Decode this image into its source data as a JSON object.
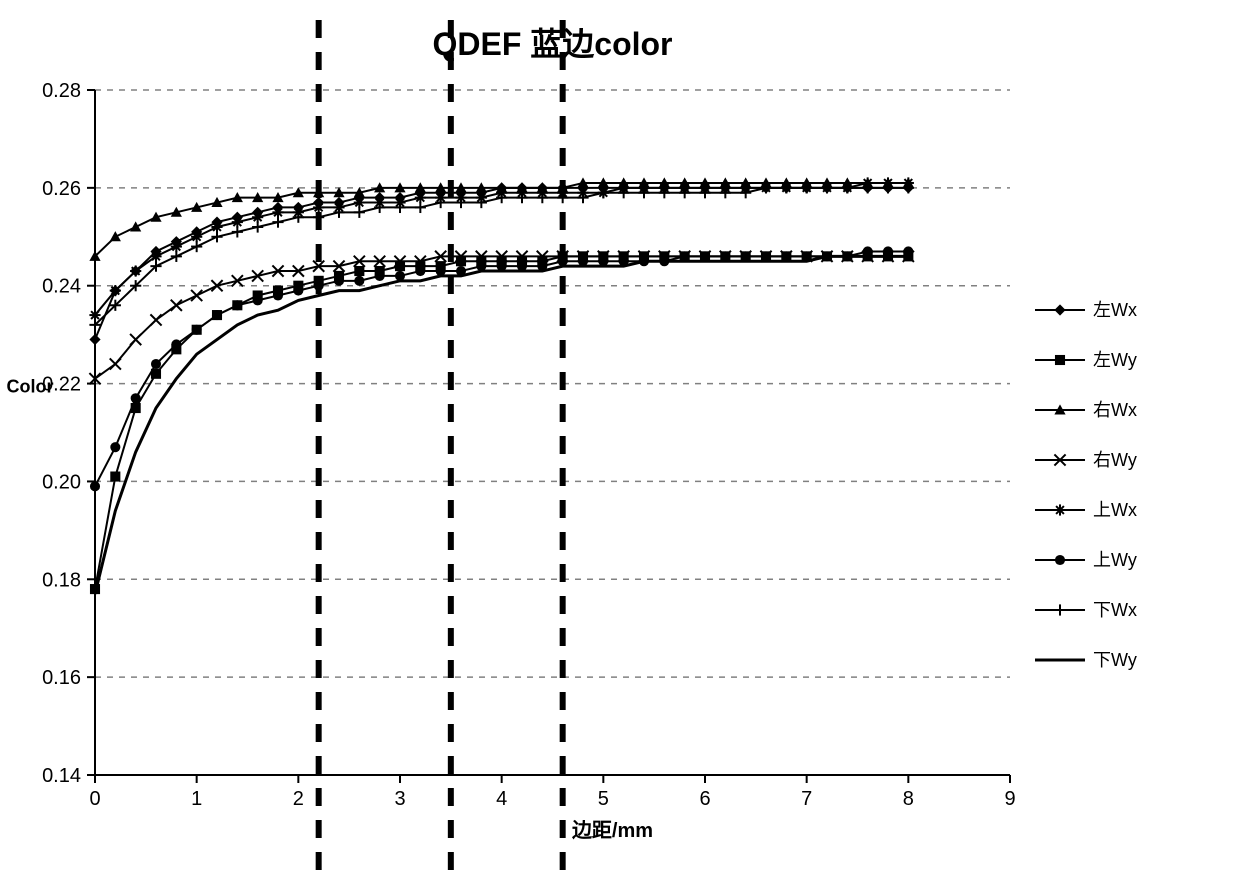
{
  "chart": {
    "type": "line",
    "title": "QDEF 蓝边color",
    "title_fontsize": 32,
    "title_fontweight": "bold",
    "xlabel": "边距/mm",
    "ylabel": "Color",
    "label_fontsize": 20,
    "label_fontweight": "bold",
    "tick_fontsize": 20,
    "xlim": [
      0,
      9
    ],
    "ylim": [
      0.14,
      0.28
    ],
    "xtick_step": 1,
    "ytick_step": 0.02,
    "background_color": "#ffffff",
    "grid_color": "#808080",
    "grid_dash": "6,6",
    "axis_color": "#000000",
    "vlines": [
      2.2,
      3.5,
      4.6
    ],
    "vline_dash": "18,14",
    "vline_width": 6,
    "legend_fontsize": 18,
    "series": [
      {
        "name": "左Wx",
        "marker": "diamond",
        "line_width": 2,
        "marker_size": 8,
        "color": "#000000",
        "x": [
          0,
          0.2,
          0.4,
          0.6,
          0.8,
          1,
          1.2,
          1.4,
          1.6,
          1.8,
          2,
          2.2,
          2.4,
          2.6,
          2.8,
          3,
          3.2,
          3.4,
          3.6,
          3.8,
          4,
          4.2,
          4.4,
          4.6,
          4.8,
          5,
          5.2,
          5.4,
          5.6,
          5.8,
          6,
          6.2,
          6.4,
          6.6,
          6.8,
          7,
          7.2,
          7.4,
          7.6,
          7.8,
          8
        ],
        "y": [
          0.229,
          0.239,
          0.243,
          0.247,
          0.249,
          0.251,
          0.253,
          0.254,
          0.255,
          0.256,
          0.256,
          0.257,
          0.257,
          0.258,
          0.258,
          0.258,
          0.259,
          0.259,
          0.259,
          0.259,
          0.26,
          0.26,
          0.26,
          0.26,
          0.26,
          0.26,
          0.26,
          0.26,
          0.26,
          0.26,
          0.26,
          0.26,
          0.26,
          0.26,
          0.26,
          0.26,
          0.26,
          0.26,
          0.26,
          0.26,
          0.26
        ]
      },
      {
        "name": "左Wy",
        "marker": "square",
        "line_width": 2,
        "marker_size": 8,
        "color": "#000000",
        "x": [
          0,
          0.2,
          0.4,
          0.6,
          0.8,
          1,
          1.2,
          1.4,
          1.6,
          1.8,
          2,
          2.2,
          2.4,
          2.6,
          2.8,
          3,
          3.2,
          3.4,
          3.6,
          3.8,
          4,
          4.2,
          4.4,
          4.6,
          4.8,
          5,
          5.2,
          5.4,
          5.6,
          5.8,
          6,
          6.2,
          6.4,
          6.6,
          6.8,
          7,
          7.2,
          7.4,
          7.6,
          7.8,
          8
        ],
        "y": [
          0.178,
          0.201,
          0.215,
          0.222,
          0.227,
          0.231,
          0.234,
          0.236,
          0.238,
          0.239,
          0.24,
          0.241,
          0.242,
          0.243,
          0.243,
          0.244,
          0.244,
          0.244,
          0.245,
          0.245,
          0.245,
          0.245,
          0.245,
          0.246,
          0.246,
          0.246,
          0.246,
          0.246,
          0.246,
          0.246,
          0.246,
          0.246,
          0.246,
          0.246,
          0.246,
          0.246,
          0.246,
          0.246,
          0.246,
          0.246,
          0.246
        ]
      },
      {
        "name": "右Wx",
        "marker": "triangle",
        "line_width": 2,
        "marker_size": 8,
        "color": "#000000",
        "x": [
          0,
          0.2,
          0.4,
          0.6,
          0.8,
          1,
          1.2,
          1.4,
          1.6,
          1.8,
          2,
          2.2,
          2.4,
          2.6,
          2.8,
          3,
          3.2,
          3.4,
          3.6,
          3.8,
          4,
          4.2,
          4.4,
          4.6,
          4.8,
          5,
          5.2,
          5.4,
          5.6,
          5.8,
          6,
          6.2,
          6.4,
          6.6,
          6.8,
          7,
          7.2,
          7.4,
          7.6,
          7.8,
          8
        ],
        "y": [
          0.246,
          0.25,
          0.252,
          0.254,
          0.255,
          0.256,
          0.257,
          0.258,
          0.258,
          0.258,
          0.259,
          0.259,
          0.259,
          0.259,
          0.26,
          0.26,
          0.26,
          0.26,
          0.26,
          0.26,
          0.26,
          0.26,
          0.26,
          0.26,
          0.261,
          0.261,
          0.261,
          0.261,
          0.261,
          0.261,
          0.261,
          0.261,
          0.261,
          0.261,
          0.261,
          0.261,
          0.261,
          0.261,
          0.261,
          0.261,
          0.261
        ]
      },
      {
        "name": "右Wy",
        "marker": "x",
        "line_width": 2,
        "marker_size": 8,
        "color": "#000000",
        "x": [
          0,
          0.2,
          0.4,
          0.6,
          0.8,
          1,
          1.2,
          1.4,
          1.6,
          1.8,
          2,
          2.2,
          2.4,
          2.6,
          2.8,
          3,
          3.2,
          3.4,
          3.6,
          3.8,
          4,
          4.2,
          4.4,
          4.6,
          4.8,
          5,
          5.2,
          5.4,
          5.6,
          5.8,
          6,
          6.2,
          6.4,
          6.6,
          6.8,
          7,
          7.2,
          7.4,
          7.6,
          7.8,
          8
        ],
        "y": [
          0.221,
          0.224,
          0.229,
          0.233,
          0.236,
          0.238,
          0.24,
          0.241,
          0.242,
          0.243,
          0.243,
          0.244,
          0.244,
          0.245,
          0.245,
          0.245,
          0.245,
          0.246,
          0.246,
          0.246,
          0.246,
          0.246,
          0.246,
          0.246,
          0.246,
          0.246,
          0.246,
          0.246,
          0.246,
          0.246,
          0.246,
          0.246,
          0.246,
          0.246,
          0.246,
          0.246,
          0.246,
          0.246,
          0.246,
          0.246,
          0.246
        ]
      },
      {
        "name": "上Wx",
        "marker": "asterisk",
        "line_width": 2,
        "marker_size": 8,
        "color": "#000000",
        "x": [
          0,
          0.2,
          0.4,
          0.6,
          0.8,
          1,
          1.2,
          1.4,
          1.6,
          1.8,
          2,
          2.2,
          2.4,
          2.6,
          2.8,
          3,
          3.2,
          3.4,
          3.6,
          3.8,
          4,
          4.2,
          4.4,
          4.6,
          4.8,
          5,
          5.2,
          5.4,
          5.6,
          5.8,
          6,
          6.2,
          6.4,
          6.6,
          6.8,
          7,
          7.2,
          7.4,
          7.6,
          7.8,
          8
        ],
        "y": [
          0.234,
          0.239,
          0.243,
          0.246,
          0.248,
          0.25,
          0.252,
          0.253,
          0.254,
          0.255,
          0.255,
          0.256,
          0.256,
          0.257,
          0.257,
          0.257,
          0.258,
          0.258,
          0.258,
          0.258,
          0.259,
          0.259,
          0.259,
          0.259,
          0.259,
          0.259,
          0.26,
          0.26,
          0.26,
          0.26,
          0.26,
          0.26,
          0.26,
          0.26,
          0.26,
          0.26,
          0.26,
          0.26,
          0.261,
          0.261,
          0.261
        ]
      },
      {
        "name": "上Wy",
        "marker": "circle",
        "line_width": 2,
        "marker_size": 8,
        "color": "#000000",
        "x": [
          0,
          0.2,
          0.4,
          0.6,
          0.8,
          1,
          1.2,
          1.4,
          1.6,
          1.8,
          2,
          2.2,
          2.4,
          2.6,
          2.8,
          3,
          3.2,
          3.4,
          3.6,
          3.8,
          4,
          4.2,
          4.4,
          4.6,
          4.8,
          5,
          5.2,
          5.4,
          5.6,
          5.8,
          6,
          6.2,
          6.4,
          6.6,
          6.8,
          7,
          7.2,
          7.4,
          7.6,
          7.8,
          8
        ],
        "y": [
          0.199,
          0.207,
          0.217,
          0.224,
          0.228,
          0.231,
          0.234,
          0.236,
          0.237,
          0.238,
          0.239,
          0.24,
          0.241,
          0.241,
          0.242,
          0.242,
          0.243,
          0.243,
          0.243,
          0.244,
          0.244,
          0.244,
          0.244,
          0.245,
          0.245,
          0.245,
          0.245,
          0.245,
          0.245,
          0.246,
          0.246,
          0.246,
          0.246,
          0.246,
          0.246,
          0.246,
          0.246,
          0.246,
          0.247,
          0.247,
          0.247
        ]
      },
      {
        "name": "下Wx",
        "marker": "plus",
        "line_width": 2,
        "marker_size": 8,
        "color": "#000000",
        "x": [
          0,
          0.2,
          0.4,
          0.6,
          0.8,
          1,
          1.2,
          1.4,
          1.6,
          1.8,
          2,
          2.2,
          2.4,
          2.6,
          2.8,
          3,
          3.2,
          3.4,
          3.6,
          3.8,
          4,
          4.2,
          4.4,
          4.6,
          4.8,
          5,
          5.2,
          5.4,
          5.6,
          5.8,
          6,
          6.2,
          6.4,
          6.6,
          6.8,
          7,
          7.2,
          7.4,
          7.6,
          7.8,
          8
        ],
        "y": [
          0.232,
          0.236,
          0.24,
          0.244,
          0.246,
          0.248,
          0.25,
          0.251,
          0.252,
          0.253,
          0.254,
          0.254,
          0.255,
          0.255,
          0.256,
          0.256,
          0.256,
          0.257,
          0.257,
          0.257,
          0.258,
          0.258,
          0.258,
          0.258,
          0.258,
          0.259,
          0.259,
          0.259,
          0.259,
          0.259,
          0.259,
          0.259,
          0.259,
          0.26,
          0.26,
          0.26,
          0.26,
          0.26,
          0.26,
          0.26,
          0.26
        ]
      },
      {
        "name": "下Wy",
        "marker": "none",
        "line_width": 3,
        "marker_size": 0,
        "color": "#000000",
        "x": [
          0,
          0.2,
          0.4,
          0.6,
          0.8,
          1,
          1.2,
          1.4,
          1.6,
          1.8,
          2,
          2.2,
          2.4,
          2.6,
          2.8,
          3,
          3.2,
          3.4,
          3.6,
          3.8,
          4,
          4.2,
          4.4,
          4.6,
          4.8,
          5,
          5.2,
          5.4,
          5.6,
          5.8,
          6,
          6.2,
          6.4,
          6.6,
          6.8,
          7,
          7.2,
          7.4,
          7.6,
          7.8,
          8
        ],
        "y": [
          0.177,
          0.194,
          0.206,
          0.215,
          0.221,
          0.226,
          0.229,
          0.232,
          0.234,
          0.235,
          0.237,
          0.238,
          0.239,
          0.239,
          0.24,
          0.241,
          0.241,
          0.242,
          0.242,
          0.243,
          0.243,
          0.243,
          0.243,
          0.244,
          0.244,
          0.244,
          0.244,
          0.245,
          0.245,
          0.245,
          0.245,
          0.245,
          0.245,
          0.245,
          0.245,
          0.245,
          0.246,
          0.246,
          0.246,
          0.246,
          0.246
        ]
      }
    ]
  }
}
